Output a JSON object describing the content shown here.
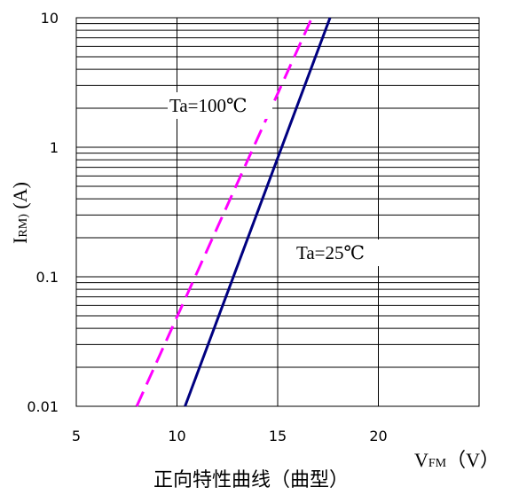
{
  "chart_data": {
    "type": "line",
    "caption": "正向特性曲线（曲型）",
    "xlabel": {
      "main": "V",
      "sub": "FM",
      "unit": "（V）"
    },
    "ylabel": {
      "main": "I",
      "sub": "RM)",
      "unit": " (A)"
    },
    "xlim": [
      5,
      25
    ],
    "ylim": [
      0.01,
      10
    ],
    "yscale": "log",
    "xticks": [
      5,
      10,
      15,
      20
    ],
    "xtick_labels": [
      "5",
      "10",
      "15",
      "20"
    ],
    "yticks": [
      0.01,
      0.1,
      1,
      10
    ],
    "ytick_labels": [
      "0.01",
      "0.1",
      "1",
      "10"
    ],
    "grid": true,
    "series": [
      {
        "name": "Ta=100℃",
        "color": "#ff00ff",
        "dash": true,
        "points": [
          [
            8.0,
            0.01
          ],
          [
            16.7,
            10
          ]
        ]
      },
      {
        "name": "Ta=25℃",
        "color": "#000080",
        "dash": false,
        "points": [
          [
            10.4,
            0.01
          ],
          [
            17.6,
            10
          ]
        ]
      }
    ]
  }
}
